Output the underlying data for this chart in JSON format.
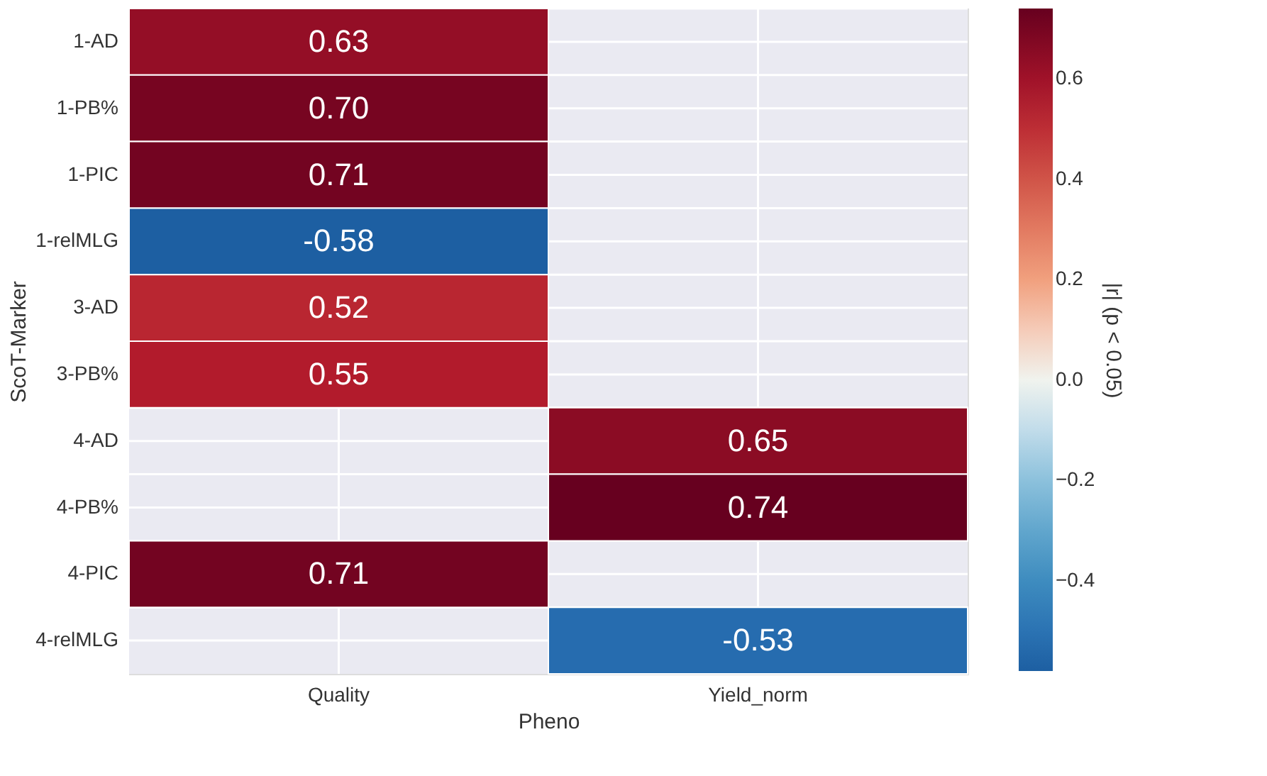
{
  "chart_data": {
    "type": "heatmap",
    "xlabel": "Pheno",
    "ylabel": "ScoT-Marker",
    "clabel": "|r| (p < 0.05)",
    "categories": [
      "Quality",
      "Yield_norm"
    ],
    "y_categories": [
      "1-AD",
      "1-PB%",
      "1-PIC",
      "1-relMLG",
      "3-AD",
      "3-PB%",
      "4-AD",
      "4-PB%",
      "4-PIC",
      "4-relMLG"
    ],
    "cells": [
      [
        0.63,
        null
      ],
      [
        0.7,
        null
      ],
      [
        0.71,
        null
      ],
      [
        -0.58,
        null
      ],
      [
        0.52,
        null
      ],
      [
        0.55,
        null
      ],
      [
        null,
        0.65
      ],
      [
        null,
        0.74
      ],
      [
        0.71,
        null
      ],
      [
        null,
        -0.53
      ]
    ],
    "clim": [
      -0.58,
      0.74
    ],
    "cticks": [
      {
        "value": -0.4,
        "label": "−0.4"
      },
      {
        "value": -0.2,
        "label": "−0.2"
      },
      {
        "value": 0,
        "label": "0.0"
      },
      {
        "value": 0.2,
        "label": "0.2"
      },
      {
        "value": 0.4,
        "label": "0.4"
      },
      {
        "value": 0.6,
        "label": "0.6"
      }
    ],
    "data_labels": true,
    "cell_labels": [
      [
        "0.63",
        null
      ],
      [
        "0.70",
        null
      ],
      [
        "0.71",
        null
      ],
      [
        "-0.58",
        null
      ],
      [
        "0.52",
        null
      ],
      [
        "0.55",
        null
      ],
      [
        null,
        "0.65"
      ],
      [
        null,
        "0.74"
      ],
      [
        "0.71",
        null
      ],
      [
        null,
        "-0.53"
      ]
    ],
    "grid": true
  }
}
